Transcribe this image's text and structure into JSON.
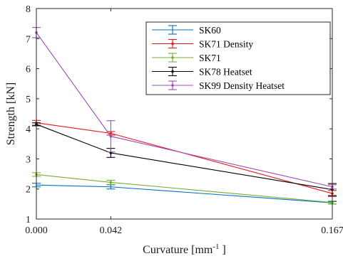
{
  "chart_data": {
    "type": "line",
    "title": "",
    "xlabel": "Curvature [mm",
    "xlabel_sup": "-1",
    "xlabel_end": "]",
    "ylabel": "Strength [kN]",
    "x": [
      0.0,
      0.042,
      0.167
    ],
    "x_tick_labels": [
      "0.000",
      "0.042",
      "0.167"
    ],
    "xlim": [
      0.0,
      0.167
    ],
    "ylim": [
      1,
      8
    ],
    "y_ticks": [
      1,
      2,
      3,
      4,
      5,
      6,
      7,
      8
    ],
    "y_tick_labels": [
      "1",
      "2",
      "3",
      "4",
      "5",
      "6",
      "7",
      "8"
    ],
    "grid": false,
    "legend_position": "top-right",
    "series": [
      {
        "name": "SK60",
        "color": "#0072BD",
        "marker": "none",
        "values": [
          2.13,
          2.07,
          1.54
        ],
        "errors": [
          0.06,
          0.07,
          0.04
        ]
      },
      {
        "name": "SK71 Density",
        "color": "#E8141C",
        "marker": "dot",
        "values": [
          4.2,
          3.85,
          1.85
        ],
        "errors": [
          0.08,
          0.06,
          0.1
        ]
      },
      {
        "name": "SK71",
        "color": "#77AC30",
        "marker": "dot",
        "values": [
          2.48,
          2.22,
          1.55
        ],
        "errors": [
          0.06,
          0.07,
          0.05
        ]
      },
      {
        "name": "SK78 Heatset",
        "color": "#000000",
        "marker": "dot",
        "values": [
          4.15,
          3.2,
          1.98
        ],
        "errors": [
          0.05,
          0.15,
          0.2
        ]
      },
      {
        "name": "SK99 Density Heatset",
        "color": "#9B4CB4",
        "marker": "dot",
        "values": [
          7.2,
          3.75,
          2.07
        ],
        "errors": [
          0.17,
          0.52,
          0.07
        ]
      }
    ]
  }
}
